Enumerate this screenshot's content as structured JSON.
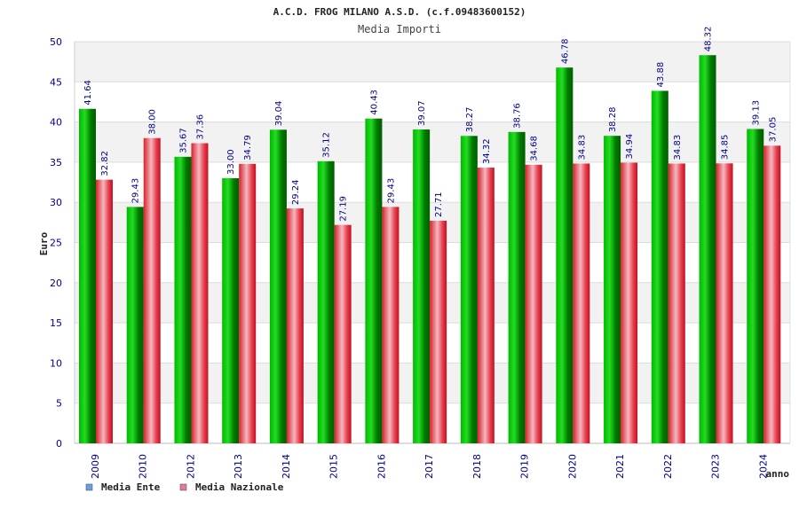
{
  "chart_data": {
    "type": "bar",
    "title": "A.C.D. FROG MILANO A.S.D. (c.f.09483600152)",
    "subtitle": "Media Importi",
    "xlabel": "anno",
    "ylabel": "Euro",
    "ylim": [
      0,
      50
    ],
    "yticks": [
      0,
      5,
      10,
      15,
      20,
      25,
      30,
      35,
      40,
      45,
      50
    ],
    "grid": true,
    "legend_position": "bottom-left",
    "categories": [
      "2009",
      "2010",
      "2012",
      "2013",
      "2014",
      "2015",
      "2016",
      "2017",
      "2018",
      "2019",
      "2020",
      "2021",
      "2022",
      "2023",
      "2024"
    ],
    "series": [
      {
        "name": "Media Ente",
        "color": "#00a000",
        "legend_color": "#6a9fe0",
        "values": [
          41.64,
          29.43,
          35.67,
          33.0,
          39.04,
          35.12,
          40.43,
          39.07,
          38.27,
          38.76,
          46.78,
          38.28,
          43.88,
          48.32,
          39.13
        ],
        "labels": [
          "41.64",
          "29.43",
          "35.67",
          "33.00",
          "39.04",
          "35.12",
          "40.43",
          "39.07",
          "38.27",
          "38.76",
          "46.78",
          "38.28",
          "43.88",
          "48.32",
          "39.13"
        ]
      },
      {
        "name": "Media Nazionale",
        "color": "#e0303a",
        "legend_color": "#e07aa0",
        "values": [
          32.82,
          38.0,
          37.36,
          34.79,
          29.24,
          27.19,
          29.43,
          27.71,
          34.32,
          34.68,
          34.83,
          34.94,
          34.83,
          34.85,
          37.05
        ],
        "labels": [
          "32.82",
          "38.00",
          "37.36",
          "34.79",
          "29.24",
          "27.19",
          "29.43",
          "27.71",
          "34.32",
          "34.68",
          "34.83",
          "34.94",
          "34.83",
          "34.85",
          "37.05"
        ]
      }
    ]
  }
}
